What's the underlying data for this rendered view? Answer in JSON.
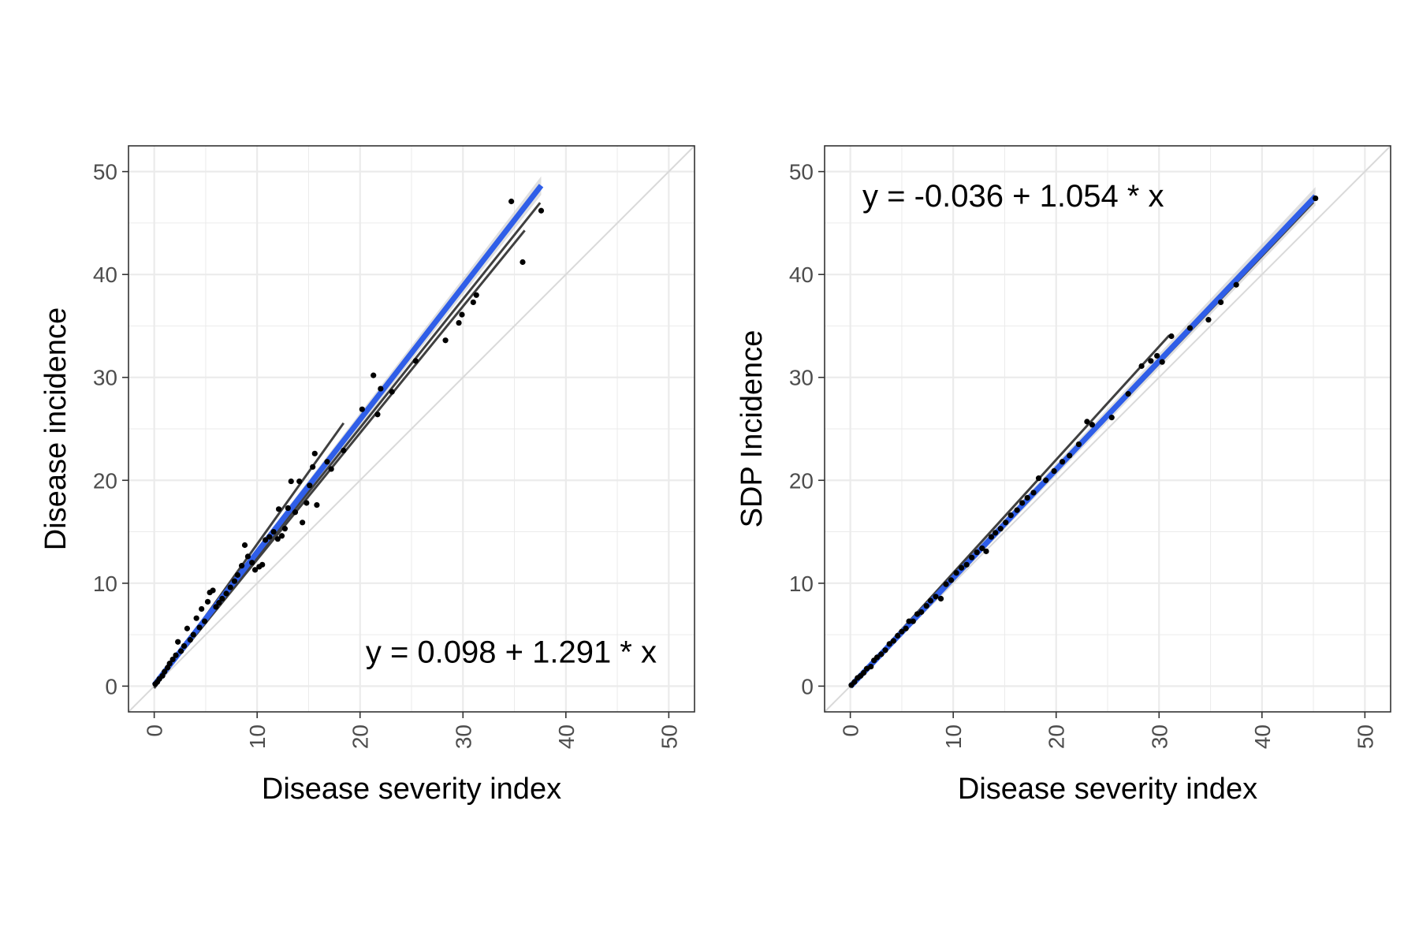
{
  "colors": {
    "background": "#ffffff",
    "panel_border": "#333333",
    "grid": "#ebebeb",
    "identity_line": "#d9d9d9",
    "points": "#000000",
    "group_fit": "#404040",
    "overall_fit": "#2f5ee8",
    "overall_fit_band": "#c9c9c9"
  },
  "chart_data": [
    {
      "type": "scatter",
      "title": "",
      "xlabel": "Disease severity index",
      "ylabel": "Disease incidence",
      "xlim": [
        -2.5,
        52.5
      ],
      "ylim": [
        -2.5,
        52.5
      ],
      "xticks": [
        "0",
        "10",
        "20",
        "30",
        "40",
        "50"
      ],
      "yticks": [
        "0",
        "10",
        "20",
        "30",
        "40",
        "50"
      ],
      "grid": true,
      "identity_line": true,
      "equation": "y = 0.098 + 1.291 * x",
      "equation_position": "bottom-right",
      "points": [
        [
          0.1,
          0.2
        ],
        [
          0.3,
          0.4
        ],
        [
          0.5,
          0.7
        ],
        [
          0.8,
          1.0
        ],
        [
          1.0,
          1.4
        ],
        [
          1.3,
          1.8
        ],
        [
          1.5,
          2.2
        ],
        [
          1.8,
          2.6
        ],
        [
          2.1,
          3.0
        ],
        [
          2.3,
          4.3
        ],
        [
          2.6,
          3.4
        ],
        [
          2.9,
          3.9
        ],
        [
          3.2,
          5.6
        ],
        [
          3.5,
          4.5
        ],
        [
          3.8,
          5.0
        ],
        [
          4.1,
          6.6
        ],
        [
          4.4,
          5.7
        ],
        [
          4.6,
          7.5
        ],
        [
          4.9,
          6.3
        ],
        [
          5.2,
          8.2
        ],
        [
          5.4,
          9.1
        ],
        [
          5.7,
          9.3
        ],
        [
          6.0,
          7.7
        ],
        [
          6.3,
          8.1
        ],
        [
          6.6,
          8.5
        ],
        [
          7.0,
          9.0
        ],
        [
          7.4,
          9.6
        ],
        [
          7.8,
          10.2
        ],
        [
          8.1,
          10.8
        ],
        [
          8.5,
          11.7
        ],
        [
          8.8,
          13.7
        ],
        [
          9.1,
          12.6
        ],
        [
          9.5,
          12.0
        ],
        [
          9.8,
          11.3
        ],
        [
          10.2,
          11.6
        ],
        [
          10.5,
          11.8
        ],
        [
          10.8,
          14.2
        ],
        [
          11.2,
          14.5
        ],
        [
          11.6,
          15.0
        ],
        [
          12.0,
          14.3
        ],
        [
          12.1,
          17.2
        ],
        [
          12.4,
          14.6
        ],
        [
          12.7,
          15.3
        ],
        [
          13.0,
          17.3
        ],
        [
          13.3,
          19.9
        ],
        [
          13.7,
          16.9
        ],
        [
          14.1,
          19.9
        ],
        [
          14.4,
          15.9
        ],
        [
          14.8,
          17.8
        ],
        [
          15.1,
          19.5
        ],
        [
          15.4,
          21.3
        ],
        [
          15.6,
          22.6
        ],
        [
          15.8,
          17.6
        ],
        [
          16.8,
          21.8
        ],
        [
          17.2,
          21.1
        ],
        [
          18.4,
          22.9
        ],
        [
          20.2,
          26.9
        ],
        [
          21.3,
          30.2
        ],
        [
          21.7,
          26.4
        ],
        [
          22.0,
          28.9
        ],
        [
          23.1,
          28.6
        ],
        [
          25.4,
          31.6
        ],
        [
          28.3,
          33.6
        ],
        [
          29.6,
          35.3
        ],
        [
          29.9,
          36.1
        ],
        [
          31.0,
          37.3
        ],
        [
          31.3,
          38.0
        ],
        [
          34.7,
          47.1
        ],
        [
          35.8,
          41.2
        ],
        [
          37.6,
          46.2
        ]
      ],
      "overall_fit": {
        "intercept": 0.098,
        "slope": 1.291,
        "x_range": [
          0,
          37.6
        ]
      },
      "group_fits": [
        {
          "x_range": [
            0,
            37.5
          ],
          "intercept": 0.1,
          "slope": 1.25
        },
        {
          "x_range": [
            0,
            18.4
          ],
          "intercept": -0.2,
          "slope": 1.4
        },
        {
          "x_range": [
            0,
            36.0
          ],
          "intercept": 0.0,
          "slope": 1.23
        }
      ]
    },
    {
      "type": "scatter",
      "title": "",
      "xlabel": "Disease severity index",
      "ylabel": "SDP Incidence",
      "xlim": [
        -2.5,
        52.5
      ],
      "ylim": [
        -2.5,
        52.5
      ],
      "xticks": [
        "0",
        "10",
        "20",
        "30",
        "40",
        "50"
      ],
      "yticks": [
        "0",
        "10",
        "20",
        "30",
        "40",
        "50"
      ],
      "grid": true,
      "identity_line": true,
      "equation": "y = -0.036 + 1.054 * x",
      "equation_position": "top-left",
      "points": [
        [
          0.1,
          0.1
        ],
        [
          0.4,
          0.4
        ],
        [
          0.7,
          0.8
        ],
        [
          1.0,
          1.0
        ],
        [
          1.3,
          1.3
        ],
        [
          1.6,
          1.7
        ],
        [
          2.0,
          1.9
        ],
        [
          2.3,
          2.5
        ],
        [
          2.6,
          2.8
        ],
        [
          3.0,
          3.1
        ],
        [
          3.4,
          3.5
        ],
        [
          3.8,
          4.1
        ],
        [
          4.2,
          4.4
        ],
        [
          4.6,
          4.9
        ],
        [
          5.0,
          5.3
        ],
        [
          5.4,
          5.6
        ],
        [
          5.7,
          6.3
        ],
        [
          6.1,
          6.3
        ],
        [
          6.5,
          7.0
        ],
        [
          6.9,
          7.2
        ],
        [
          7.4,
          7.8
        ],
        [
          7.8,
          8.3
        ],
        [
          8.3,
          8.7
        ],
        [
          8.8,
          8.5
        ],
        [
          9.3,
          9.9
        ],
        [
          9.8,
          10.3
        ],
        [
          10.3,
          11.0
        ],
        [
          10.8,
          11.5
        ],
        [
          11.3,
          11.8
        ],
        [
          11.8,
          12.5
        ],
        [
          12.3,
          13.0
        ],
        [
          12.8,
          13.4
        ],
        [
          13.2,
          13.1
        ],
        [
          13.7,
          14.5
        ],
        [
          14.1,
          14.9
        ],
        [
          14.6,
          15.3
        ],
        [
          15.1,
          15.9
        ],
        [
          15.6,
          16.6
        ],
        [
          16.2,
          17.1
        ],
        [
          16.7,
          17.8
        ],
        [
          17.2,
          18.3
        ],
        [
          17.8,
          18.8
        ],
        [
          18.3,
          20.2
        ],
        [
          19.0,
          20.0
        ],
        [
          19.8,
          20.9
        ],
        [
          20.6,
          21.8
        ],
        [
          21.3,
          22.4
        ],
        [
          22.2,
          23.5
        ],
        [
          23.0,
          25.7
        ],
        [
          23.5,
          25.4
        ],
        [
          25.4,
          26.1
        ],
        [
          27.0,
          28.4
        ],
        [
          28.3,
          31.1
        ],
        [
          29.2,
          31.6
        ],
        [
          29.8,
          32.1
        ],
        [
          30.3,
          31.5
        ],
        [
          31.2,
          34.0
        ],
        [
          33.0,
          34.8
        ],
        [
          34.8,
          35.6
        ],
        [
          36.0,
          37.3
        ],
        [
          37.5,
          39.0
        ],
        [
          45.2,
          47.4
        ]
      ],
      "overall_fit": {
        "intercept": -0.036,
        "slope": 1.054,
        "x_range": [
          0,
          45.2
        ]
      },
      "group_fits": [
        {
          "x_range": [
            0,
            31.0
          ],
          "intercept": 0.0,
          "slope": 1.1
        },
        {
          "x_range": [
            0,
            45.0
          ],
          "intercept": 0.0,
          "slope": 1.045
        }
      ]
    }
  ]
}
